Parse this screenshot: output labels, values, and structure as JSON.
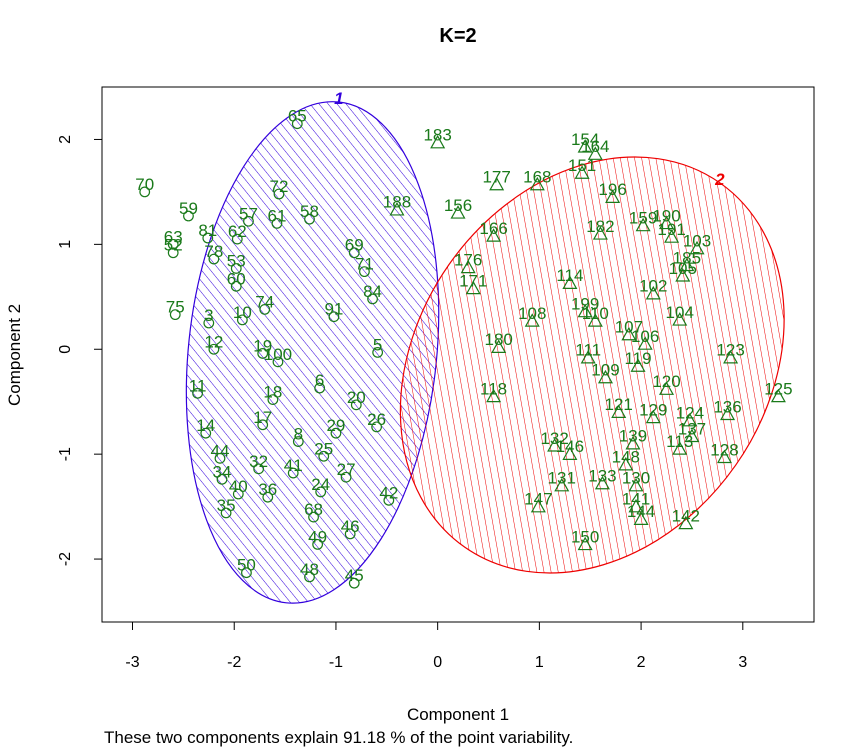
{
  "chart_data": {
    "type": "scatter",
    "title": "K=2",
    "xlabel": "Component 1",
    "ylabel": "Component 2",
    "caption": "These two components explain 91.18 % of the point variability.",
    "xlim": [
      -3.3,
      3.7
    ],
    "ylim": [
      -2.6,
      2.5
    ],
    "x_ticks": [
      "-3",
      "-2",
      "-1",
      "0",
      "1",
      "2",
      "3"
    ],
    "y_ticks": [
      "-2",
      "-1",
      "0",
      "1",
      "2"
    ],
    "grid": false,
    "colors": {
      "points": "#1a7a1a",
      "cluster1": "#3300dd",
      "cluster2": "#ee0000"
    },
    "clusters": [
      {
        "label": "1",
        "marker": "circle",
        "ellipse": {
          "cx": -1.23,
          "cy": -0.03,
          "rx": 1.22,
          "ry": 2.4,
          "angle": 6
        },
        "points": [
          {
            "label": "65",
            "x": -1.38,
            "y": 2.15
          },
          {
            "label": "70",
            "x": -2.88,
            "y": 1.5
          },
          {
            "label": "72",
            "x": -1.56,
            "y": 1.48
          },
          {
            "label": "59",
            "x": -2.45,
            "y": 1.27
          },
          {
            "label": "57",
            "x": -1.86,
            "y": 1.22
          },
          {
            "label": "61",
            "x": -1.58,
            "y": 1.2
          },
          {
            "label": "58",
            "x": -1.26,
            "y": 1.24
          },
          {
            "label": "81",
            "x": -2.26,
            "y": 1.06
          },
          {
            "label": "62",
            "x": -1.97,
            "y": 1.05
          },
          {
            "label": "63",
            "x": -2.6,
            "y": 1.0
          },
          {
            "label": "52",
            "x": -2.6,
            "y": 0.92
          },
          {
            "label": "78",
            "x": -2.2,
            "y": 0.86
          },
          {
            "label": "69",
            "x": -0.82,
            "y": 0.92
          },
          {
            "label": "53",
            "x": -1.98,
            "y": 0.77
          },
          {
            "label": "71",
            "x": -0.72,
            "y": 0.74
          },
          {
            "label": "60",
            "x": -1.98,
            "y": 0.6
          },
          {
            "label": "84",
            "x": -0.64,
            "y": 0.48
          },
          {
            "label": "75",
            "x": -2.58,
            "y": 0.33
          },
          {
            "label": "3",
            "x": -2.25,
            "y": 0.25
          },
          {
            "label": "10",
            "x": -1.92,
            "y": 0.28
          },
          {
            "label": "74",
            "x": -1.7,
            "y": 0.38
          },
          {
            "label": "91",
            "x": -1.02,
            "y": 0.31
          },
          {
            "label": "12",
            "x": -2.2,
            "y": 0.0
          },
          {
            "label": "19",
            "x": -1.72,
            "y": -0.04
          },
          {
            "label": "100",
            "x": -1.57,
            "y": -0.12
          },
          {
            "label": "5",
            "x": -0.59,
            "y": -0.03
          },
          {
            "label": "6",
            "x": -1.16,
            "y": -0.37
          },
          {
            "label": "11",
            "x": -2.36,
            "y": -0.42
          },
          {
            "label": "18",
            "x": -1.62,
            "y": -0.48
          },
          {
            "label": "20",
            "x": -0.8,
            "y": -0.53
          },
          {
            "label": "17",
            "x": -1.72,
            "y": -0.72
          },
          {
            "label": "26",
            "x": -0.6,
            "y": -0.74
          },
          {
            "label": "14",
            "x": -2.28,
            "y": -0.8
          },
          {
            "label": "29",
            "x": -1.0,
            "y": -0.8
          },
          {
            "label": "8",
            "x": -1.37,
            "y": -0.88
          },
          {
            "label": "25",
            "x": -1.12,
            "y": -1.02
          },
          {
            "label": "44",
            "x": -2.14,
            "y": -1.04
          },
          {
            "label": "32",
            "x": -1.76,
            "y": -1.14
          },
          {
            "label": "41",
            "x": -1.42,
            "y": -1.18
          },
          {
            "label": "27",
            "x": -0.9,
            "y": -1.22
          },
          {
            "label": "34",
            "x": -2.12,
            "y": -1.24
          },
          {
            "label": "40",
            "x": -1.96,
            "y": -1.38
          },
          {
            "label": "36",
            "x": -1.67,
            "y": -1.41
          },
          {
            "label": "24",
            "x": -1.15,
            "y": -1.36
          },
          {
            "label": "42",
            "x": -0.48,
            "y": -1.44
          },
          {
            "label": "35",
            "x": -2.08,
            "y": -1.56
          },
          {
            "label": "68",
            "x": -1.22,
            "y": -1.6
          },
          {
            "label": "46",
            "x": -0.86,
            "y": -1.76
          },
          {
            "label": "49",
            "x": -1.18,
            "y": -1.86
          },
          {
            "label": "50",
            "x": -1.88,
            "y": -2.13
          },
          {
            "label": "48",
            "x": -1.26,
            "y": -2.17
          },
          {
            "label": "45",
            "x": -0.82,
            "y": -2.23
          }
        ]
      },
      {
        "label": "2",
        "marker": "triangle",
        "ellipse": {
          "cx": 1.52,
          "cy": -0.15,
          "rx": 1.72,
          "ry": 2.12,
          "angle": 35
        },
        "points": [
          {
            "label": "183",
            "x": 0.0,
            "y": 1.97
          },
          {
            "label": "154",
            "x": 1.45,
            "y": 1.93
          },
          {
            "label": "164",
            "x": 1.55,
            "y": 1.86
          },
          {
            "label": "151",
            "x": 1.42,
            "y": 1.68
          },
          {
            "label": "177",
            "x": 0.58,
            "y": 1.57
          },
          {
            "label": "168",
            "x": 0.98,
            "y": 1.57
          },
          {
            "label": "196",
            "x": 1.72,
            "y": 1.45
          },
          {
            "label": "188",
            "x": -0.4,
            "y": 1.33
          },
          {
            "label": "156",
            "x": 0.2,
            "y": 1.3
          },
          {
            "label": "190",
            "x": 2.25,
            "y": 1.2
          },
          {
            "label": "159",
            "x": 2.02,
            "y": 1.18
          },
          {
            "label": "182",
            "x": 1.6,
            "y": 1.1
          },
          {
            "label": "191",
            "x": 2.3,
            "y": 1.07
          },
          {
            "label": "166",
            "x": 0.55,
            "y": 1.08
          },
          {
            "label": "103",
            "x": 2.55,
            "y": 0.96
          },
          {
            "label": "176",
            "x": 0.3,
            "y": 0.78
          },
          {
            "label": "185",
            "x": 2.45,
            "y": 0.8
          },
          {
            "label": "105",
            "x": 2.41,
            "y": 0.7
          },
          {
            "label": "171",
            "x": 0.35,
            "y": 0.58
          },
          {
            "label": "114",
            "x": 1.3,
            "y": 0.63
          },
          {
            "label": "102",
            "x": 2.12,
            "y": 0.53
          },
          {
            "label": "108",
            "x": 0.93,
            "y": 0.27
          },
          {
            "label": "199",
            "x": 1.45,
            "y": 0.36
          },
          {
            "label": "110",
            "x": 1.55,
            "y": 0.27
          },
          {
            "label": "104",
            "x": 2.38,
            "y": 0.28
          },
          {
            "label": "107",
            "x": 1.88,
            "y": 0.14
          },
          {
            "label": "106",
            "x": 2.04,
            "y": 0.05
          },
          {
            "label": "180",
            "x": 0.6,
            "y": 0.02
          },
          {
            "label": "111",
            "x": 1.48,
            "y": -0.08
          },
          {
            "label": "123",
            "x": 2.88,
            "y": -0.08
          },
          {
            "label": "119",
            "x": 1.97,
            "y": -0.16
          },
          {
            "label": "109",
            "x": 1.65,
            "y": -0.27
          },
          {
            "label": "125",
            "x": 3.35,
            "y": -0.45
          },
          {
            "label": "118",
            "x": 0.55,
            "y": -0.45
          },
          {
            "label": "120",
            "x": 2.25,
            "y": -0.38
          },
          {
            "label": "121",
            "x": 1.78,
            "y": -0.6
          },
          {
            "label": "136",
            "x": 2.85,
            "y": -0.62
          },
          {
            "label": "129",
            "x": 2.12,
            "y": -0.65
          },
          {
            "label": "124",
            "x": 2.48,
            "y": -0.68
          },
          {
            "label": "137",
            "x": 2.5,
            "y": -0.83
          },
          {
            "label": "139",
            "x": 1.92,
            "y": -0.9
          },
          {
            "label": "132",
            "x": 1.15,
            "y": -0.92
          },
          {
            "label": "146",
            "x": 1.3,
            "y": -1.0
          },
          {
            "label": "113",
            "x": 2.38,
            "y": -0.95
          },
          {
            "label": "128",
            "x": 2.82,
            "y": -1.03
          },
          {
            "label": "148",
            "x": 1.85,
            "y": -1.1
          },
          {
            "label": "130",
            "x": 1.95,
            "y": -1.3
          },
          {
            "label": "131",
            "x": 1.22,
            "y": -1.3
          },
          {
            "label": "133",
            "x": 1.62,
            "y": -1.28
          },
          {
            "label": "147",
            "x": 0.99,
            "y": -1.5
          },
          {
            "label": "141",
            "x": 1.95,
            "y": -1.5
          },
          {
            "label": "144",
            "x": 2.0,
            "y": -1.62
          },
          {
            "label": "142",
            "x": 2.44,
            "y": -1.66
          },
          {
            "label": "150",
            "x": 1.45,
            "y": -1.86
          }
        ]
      }
    ]
  }
}
